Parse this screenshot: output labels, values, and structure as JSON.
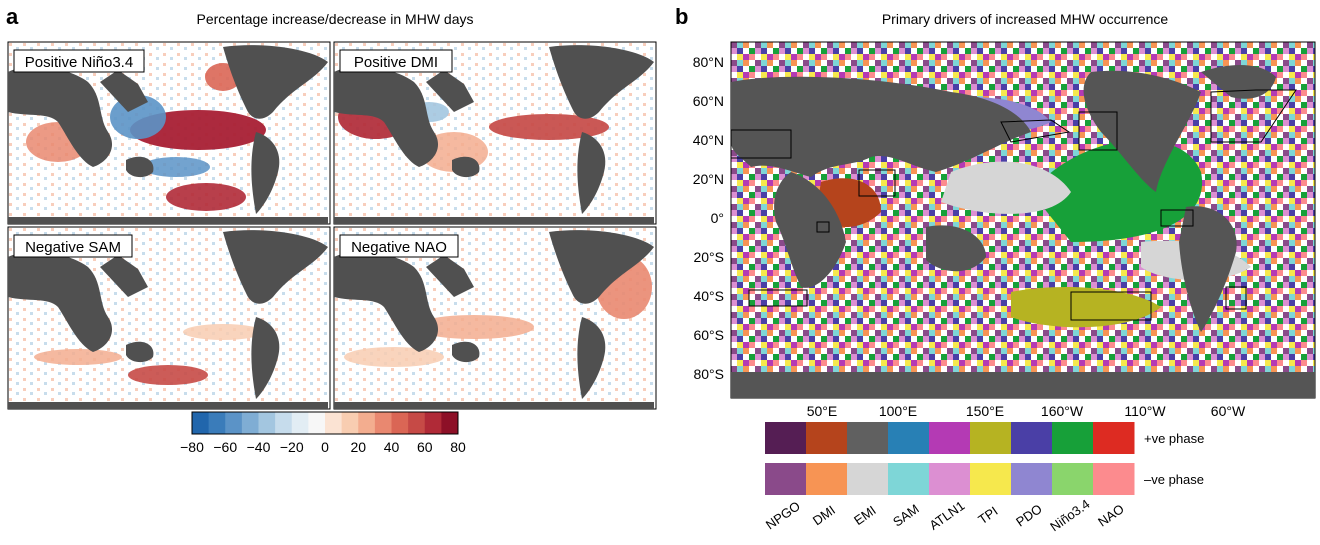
{
  "panel_a": {
    "letter": "a",
    "title": "Percentage increase/decrease in MHW days",
    "colorbar": {
      "ticks": [
        "−80",
        "−60",
        "−40",
        "−20",
        "0",
        "20",
        "40",
        "60",
        "80"
      ],
      "range": [
        -80,
        80
      ],
      "colors": [
        "#2166ac",
        "#3a7cba",
        "#5b93c7",
        "#7fadd4",
        "#a3c6e0",
        "#c6dcec",
        "#e2edf4",
        "#f7f7f7",
        "#fbe3d3",
        "#f8cdb1",
        "#f3ad8f",
        "#e98870",
        "#da6655",
        "#c64a46",
        "#b02a37",
        "#8d1027"
      ]
    },
    "submaps": [
      {
        "label": "Positive Niño3.4"
      },
      {
        "label": "Positive DMI"
      },
      {
        "label": "Negative SAM"
      },
      {
        "label": "Negative NAO"
      }
    ]
  },
  "panel_b": {
    "letter": "b",
    "title": "Primary drivers of increased MHW occurrence",
    "lat_ticks": [
      "80°N",
      "60°N",
      "40°N",
      "20°N",
      "0°",
      "20°S",
      "40°S",
      "60°S",
      "80°S"
    ],
    "lon_ticks": [
      "50°E",
      "100°E",
      "150°E",
      "160°W",
      "110°W",
      "60°W"
    ],
    "legend": {
      "pos_label": "+ve phase",
      "neg_label": "–ve phase",
      "drivers": [
        "NPGO",
        "DMI",
        "EMI",
        "SAM",
        "ATLN1",
        "TPI",
        "PDO",
        "Niño3.4",
        "NAO"
      ],
      "pos_colors": [
        "#551e54",
        "#b5441c",
        "#606060",
        "#2880b5",
        "#b43ab4",
        "#b6b322",
        "#4a3fa6",
        "#17a039",
        "#dd2b22"
      ],
      "neg_colors": [
        "#8a4a8a",
        "#f79454",
        "#d6d6d6",
        "#7ed6d7",
        "#dc8fd2",
        "#f6e84d",
        "#8f86d1",
        "#8ad56c",
        "#fc8b8e"
      ]
    }
  }
}
